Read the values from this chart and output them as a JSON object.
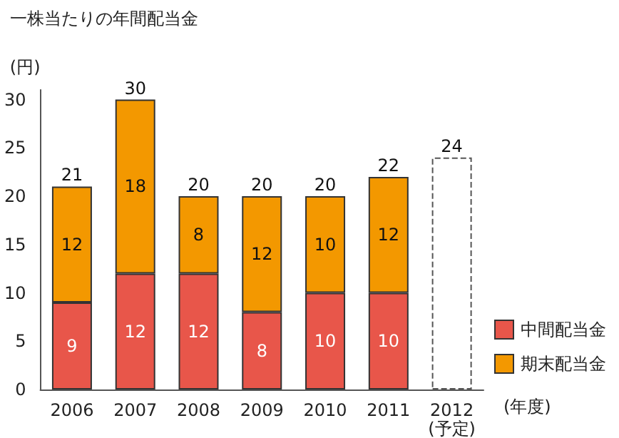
{
  "chart_data": {
    "type": "bar",
    "title": "一株当たりの年間配当金",
    "ylabel": "(円)",
    "xlabel": "(年度)",
    "categories": [
      "2006",
      "2007",
      "2008",
      "2009",
      "2010",
      "2011",
      "2012\n(予定)"
    ],
    "stacked": true,
    "series": [
      {
        "name": "中間配当金",
        "color": "#e8564a",
        "values": [
          9,
          12,
          12,
          8,
          10,
          10,
          null
        ],
        "value_labels": [
          "9",
          "12",
          "12",
          "8",
          "10",
          "10",
          null
        ]
      },
      {
        "name": "期末配当金",
        "color": "#f39800",
        "values": [
          12,
          18,
          8,
          12,
          10,
          12,
          null
        ],
        "value_labels": [
          "12",
          "18",
          "8",
          "12",
          "10",
          "12",
          null
        ]
      },
      {
        "color": "#ffffff",
        "line_style": "dashed",
        "values": [
          null,
          null,
          null,
          null,
          null,
          null,
          24
        ]
      }
    ],
    "totals": [
      "21",
      "30",
      "20",
      "20",
      "20",
      "22",
      "24"
    ],
    "ylim": [
      0,
      31
    ],
    "yticks": [
      0,
      5,
      10,
      15,
      20,
      25,
      30
    ],
    "grid": false,
    "legend": "bottom right"
  }
}
